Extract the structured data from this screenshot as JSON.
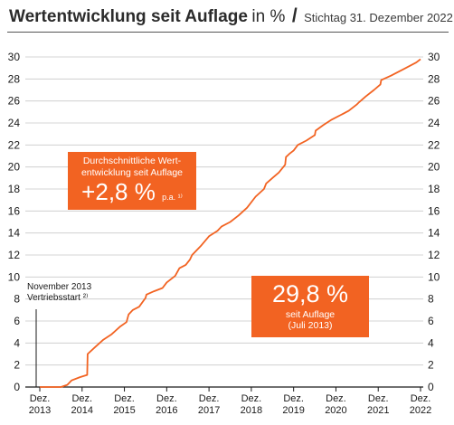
{
  "header": {
    "title_bold": "Wertentwicklung seit Auflage",
    "title_unit": "in %",
    "slash": "/",
    "subtitle": "Stichtag 31. Dezember 2022"
  },
  "highlight_left": {
    "line1": "Durchschnittliche Wert-",
    "line2": "entwicklung seit Auflage",
    "value": "+2,8 %",
    "suffix": "p.a. ¹⁾"
  },
  "highlight_right": {
    "value": "29,8 %",
    "line1": "seit Auflage",
    "line2": "(Juli 2013)"
  },
  "launch_note": {
    "line1": "November 2013",
    "line2": "Vertriebsstart ²⁾"
  },
  "colors": {
    "line": "#f26322",
    "box": "#f26322",
    "grid": "#c8c8c8",
    "axis": "#1a1a1a"
  },
  "chart_data": {
    "type": "line",
    "title": "Wertentwicklung seit Auflage",
    "xlabel": "",
    "ylabel": "",
    "ylim": [
      0,
      30
    ],
    "xlim": [
      2013,
      2022
    ],
    "y_ticks": [
      "0",
      "2",
      "4",
      "6",
      "8",
      "10",
      "12",
      "14",
      "16",
      "18",
      "20",
      "22",
      "24",
      "26",
      "28",
      "30"
    ],
    "x_ticks": [
      {
        "x": 2013,
        "label1": "Dez.",
        "label2": "2013"
      },
      {
        "x": 2014,
        "label1": "Dez.",
        "label2": "2014"
      },
      {
        "x": 2015,
        "label1": "Dez.",
        "label2": "2015"
      },
      {
        "x": 2016,
        "label1": "Dez.",
        "label2": "2016"
      },
      {
        "x": 2017,
        "label1": "Dez.",
        "label2": "2017"
      },
      {
        "x": 2018,
        "label1": "Dez.",
        "label2": "2018"
      },
      {
        "x": 2019,
        "label1": "Dez.",
        "label2": "2019"
      },
      {
        "x": 2020,
        "label1": "Dez.",
        "label2": "2020"
      },
      {
        "x": 2021,
        "label1": "Dez.",
        "label2": "2021"
      },
      {
        "x": 2022,
        "label1": "Dez.",
        "label2": "2022"
      }
    ],
    "grid": true,
    "series": [
      {
        "name": "",
        "x": [
          2013.0,
          2013.5,
          2013.65,
          2013.75,
          2013.95,
          2014.12,
          2014.13,
          2014.3,
          2014.5,
          2014.7,
          2014.9,
          2015.05,
          2015.1,
          2015.2,
          2015.35,
          2015.5,
          2015.52,
          2015.7,
          2015.9,
          2016.0,
          2016.2,
          2016.3,
          2016.45,
          2016.55,
          2016.6,
          2016.8,
          2017.0,
          2017.2,
          2017.3,
          2017.5,
          2017.7,
          2017.9,
          2018.1,
          2018.3,
          2018.35,
          2018.5,
          2018.65,
          2018.8,
          2018.82,
          2018.9,
          2019.0,
          2019.1,
          2019.3,
          2019.5,
          2019.52,
          2019.7,
          2019.9,
          2020.1,
          2020.3,
          2020.5,
          2020.55,
          2020.7,
          2020.9,
          2021.05,
          2021.07,
          2021.3,
          2021.6,
          2021.9,
          2022.0
        ],
        "values": [
          0.0,
          0.0,
          0.2,
          0.6,
          0.9,
          1.1,
          3.0,
          3.6,
          4.3,
          4.8,
          5.5,
          5.9,
          6.6,
          7.0,
          7.3,
          8.1,
          8.4,
          8.7,
          9.0,
          9.5,
          10.1,
          10.8,
          11.1,
          11.6,
          12.0,
          12.8,
          13.7,
          14.2,
          14.6,
          15.0,
          15.6,
          16.3,
          17.3,
          18.0,
          18.5,
          19.0,
          19.5,
          20.2,
          20.9,
          21.2,
          21.5,
          22.0,
          22.4,
          22.9,
          23.3,
          23.8,
          24.3,
          24.7,
          25.1,
          25.7,
          25.9,
          26.4,
          27.0,
          27.5,
          27.9,
          28.3,
          28.9,
          29.5,
          29.8
        ]
      }
    ]
  }
}
